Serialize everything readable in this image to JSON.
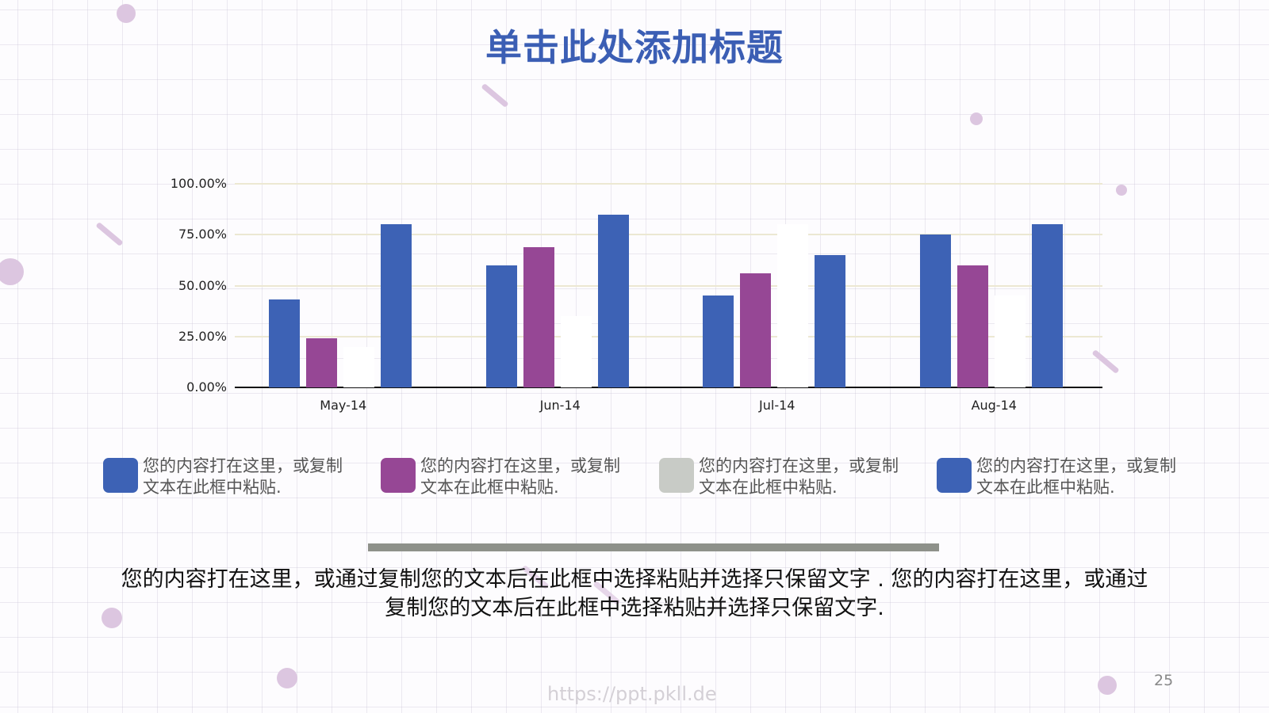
{
  "slide": {
    "title": "单击此处添加标题",
    "page_number": "25",
    "watermark": "https://ppt.pkll.de",
    "body_text": "您的内容打在这里，或通过复制您的文本后在此框中选择粘贴并选择只保留文字 . 您的内容打在这里，或通过复制您的文本后在此框中选择粘贴并选择只保留文字.",
    "colors": {
      "title": "#3b5eb4",
      "blue": "#3d62b5",
      "purple": "#964795",
      "gray": "#c8cbc6",
      "decoration": "#dcc6e0"
    }
  },
  "legend": [
    {
      "label": "您的内容打在这里，或复制文本在此框中粘贴.",
      "color": "#3d62b5"
    },
    {
      "label": "您的内容打在这里，或复制文本在此框中粘贴.",
      "color": "#964795"
    },
    {
      "label": "您的内容打在这里，或复制文本在此框中粘贴.",
      "color": "#c8cbc6"
    },
    {
      "label": "您的内容打在这里，或复制文本在此框中粘贴.",
      "color": "#3d62b5"
    }
  ],
  "chart_data": {
    "type": "bar",
    "title": "",
    "xlabel": "",
    "ylabel": "",
    "categories": [
      "May-14",
      "Jun-14",
      "Jul-14",
      "Aug-14"
    ],
    "yticks": [
      "100.00%",
      "75.00%",
      "50.00%",
      "25.00%",
      "0.00%"
    ],
    "ylim": [
      0,
      100
    ],
    "grid": true,
    "legend_position": "bottom",
    "series": [
      {
        "name": "您的内容打在这里，或复制文本在此框中粘贴.",
        "color": "#3d62b5",
        "values": [
          43,
          60,
          45,
          75
        ]
      },
      {
        "name": "您的内容打在这里，或复制文本在此框中粘贴.",
        "color": "#964795",
        "values": [
          24,
          69,
          56,
          60
        ]
      },
      {
        "name": "您的内容打在这里，或复制文本在此框中粘贴.",
        "color": "#ffffff",
        "values": [
          20,
          35,
          80,
          45
        ]
      },
      {
        "name": "您的内容打在这里，或复制文本在此框中粘贴.",
        "color": "#3d62b5",
        "values": [
          80,
          85,
          65,
          80
        ]
      }
    ]
  }
}
